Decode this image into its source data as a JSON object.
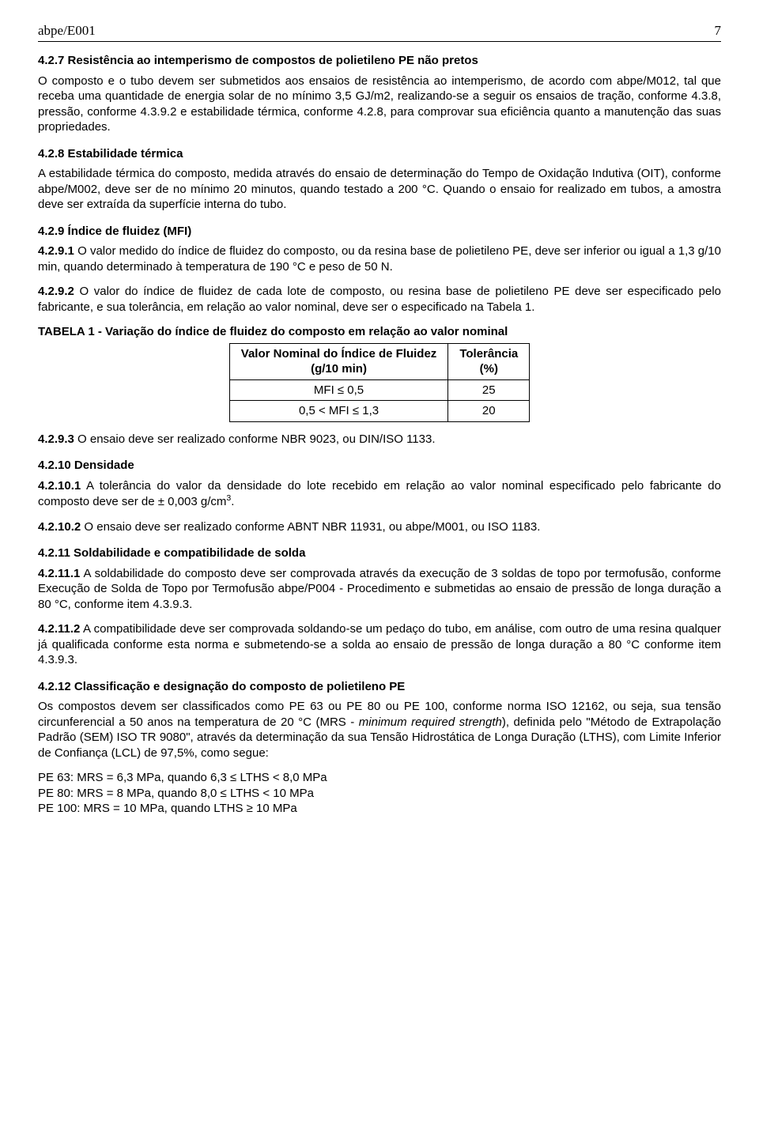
{
  "header": {
    "doc": "abpe/E001",
    "page": "7"
  },
  "s427": {
    "h": "4.2.7 Resistência ao intemperismo de compostos de polietileno PE não pretos",
    "p": "O composto e o tubo devem ser submetidos aos ensaios de resistência ao intemperismo, de acordo com abpe/M012, tal que receba uma quantidade de energia solar de no mínimo 3,5 GJ/m2, realizando-se a seguir os ensaios de tração, conforme 4.3.8, pressão, conforme 4.3.9.2 e estabilidade térmica, conforme 4.2.8, para comprovar sua eficiência quanto a manutenção das suas propriedades."
  },
  "s428": {
    "h": "4.2.8 Estabilidade térmica",
    "p": "A estabilidade térmica do composto, medida através do ensaio de determinação do Tempo de Oxidação Indutiva (OIT), conforme abpe/M002, deve ser de no mínimo 20 minutos, quando testado a 200 °C. Quando o ensaio for realizado em tubos, a amostra deve ser extraída da superfície interna do tubo."
  },
  "s429": {
    "h": "4.2.9 Índice de fluidez (MFI)"
  },
  "p4291": {
    "bold": "4.2.9.1",
    "txt": " O valor medido do índice de fluidez do composto, ou da resina base de polietileno PE, deve ser inferior ou igual a 1,3 g/10 min, quando determinado à temperatura de 190 °C e peso de 50 N."
  },
  "p4292": {
    "bold": "4.2.9.2",
    "txt": " O valor do índice de fluidez de cada lote de composto, ou resina base de polietileno PE deve ser especificado pelo fabricante, e sua tolerância, em relação ao valor nominal, deve ser o especificado na Tabela 1."
  },
  "table1": {
    "title": "TABELA 1 - Variação do índice de fluidez do composto em relação ao valor nominal",
    "col1_a": "Valor Nominal do Índice de Fluidez",
    "col1_b": "(g/10 min)",
    "col2_a": "Tolerância",
    "col2_b": "(%)",
    "r1c1": "MFI ≤ 0,5",
    "r1c2": "25",
    "r2c1": "0,5 < MFI ≤ 1,3",
    "r2c2": "20"
  },
  "p4293": {
    "bold": "4.2.9.3",
    "txt": " O ensaio deve ser realizado conforme NBR 9023, ou DIN/ISO 1133."
  },
  "s4210": {
    "h": "4.2.10 Densidade"
  },
  "p42101": {
    "bold": "4.2.10.1",
    "txt_a": " A tolerância do valor da densidade do lote recebido em relação ao valor nominal especificado pelo fabricante do composto deve ser de ± 0,003 g/cm",
    "sup": "3",
    "txt_b": "."
  },
  "p42102": {
    "bold": "4.2.10.2",
    "txt": " O ensaio deve ser realizado conforme ABNT NBR 11931, ou abpe/M001, ou ISO 1183."
  },
  "s4211": {
    "h": "4.2.11 Soldabilidade e compatibilidade de solda"
  },
  "p42111": {
    "bold": "4.2.11.1",
    "txt": " A soldabilidade do composto deve ser comprovada através da execução de 3 soldas de topo por termofusão, conforme Execução de Solda de Topo por Termofusão abpe/P004 - Procedimento e submetidas ao ensaio de pressão de longa duração a 80 °C, conforme item 4.3.9.3."
  },
  "p42112": {
    "bold": "4.2.11.2",
    "txt": " A compatibilidade deve ser comprovada soldando-se um pedaço do tubo, em análise, com outro de uma resina  qualquer já qualificada conforme esta norma e submetendo-se a solda ao ensaio de pressão de longa duração a 80 °C  conforme item 4.3.9.3."
  },
  "s4212": {
    "h": "4.2.12 Classificação e designação do composto de polietileno PE",
    "p_a": "Os compostos devem ser classificados como PE 63 ou PE 80 ou PE 100, conforme norma ISO 12162, ou seja, sua tensão circunferencial a 50 anos na temperatura de 20 °C (MRS - ",
    "p_it": "minimum required strength",
    "p_b": "), definida pelo \"Método de Extrapolação Padrão (SEM) ISO TR 9080\", através da determinação da sua Tensão Hidrostática de Longa Duração (LTHS), com Limite Inferior de Confiança (LCL) de 97,5%, como segue:"
  },
  "mrs": {
    "l1": "PE 63:    MRS = 6,3 MPa, quando 6,3 ≤ LTHS < 8,0 MPa",
    "l2": "PE 80:    MRS = 8 MPa, quando 8,0 ≤ LTHS < 10 MPa",
    "l3": "PE 100: MRS = 10 MPa, quando LTHS ≥ 10 MPa"
  }
}
